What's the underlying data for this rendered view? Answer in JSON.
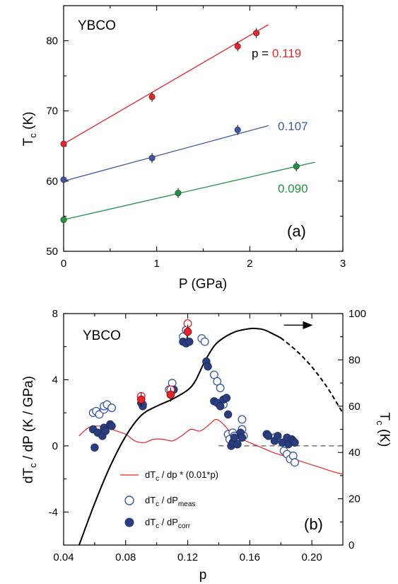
{
  "chart_data": [
    {
      "type": "scatter",
      "panel_label": "(a)",
      "sample": "YBCO",
      "xlabel": "P (GPa)",
      "ylabel_main": "T",
      "ylabel_sub": "c",
      "ylabel_unit": " (K)",
      "xlim": [
        0,
        3
      ],
      "ylim": [
        50,
        85
      ],
      "xticks": [
        "0",
        "1",
        "2",
        "3"
      ],
      "yticks": [
        "50",
        "60",
        "70",
        "80"
      ],
      "series": [
        {
          "label": "0.119",
          "label_prefix": "p = ",
          "color": "#e8242b",
          "x": [
            0,
            0.95,
            1.87,
            2.07
          ],
          "y": [
            65.3,
            72.0,
            79.2,
            81.1
          ],
          "fit": {
            "x0": 0,
            "y0": 65.3,
            "x1": 2.2,
            "y1": 82.3
          }
        },
        {
          "label": "0.107",
          "color": "#3a57a7",
          "x": [
            0,
            0.95,
            1.87
          ],
          "y": [
            60.2,
            63.3,
            67.3
          ],
          "fit": {
            "x0": 0,
            "y0": 60.0,
            "x1": 2.2,
            "y1": 67.9
          }
        },
        {
          "label": "0.090",
          "color": "#1e9344",
          "x": [
            0,
            1.23,
            2.5
          ],
          "y": [
            54.5,
            58.3,
            62.1
          ],
          "fit": {
            "x0": 0,
            "y0": 54.5,
            "x1": 2.7,
            "y1": 62.7
          }
        }
      ]
    },
    {
      "type": "scatter",
      "panel_label": "(b)",
      "sample": "YBCO",
      "xlabel": "p",
      "ylabel_left_main": "dT",
      "ylabel_left_sub": "c",
      "ylabel_left_unit": " / dP (K / GPa)",
      "ylabel_right_main": "T",
      "ylabel_right_sub": "c",
      "ylabel_right_unit": " (K)",
      "xlim": [
        0.04,
        0.22
      ],
      "ylim_left": [
        -6,
        8
      ],
      "ylim_right": [
        0,
        100
      ],
      "xticks": [
        "0.04",
        "0.08",
        "0.12",
        "0.16",
        "0.20"
      ],
      "yticks_left": [
        "-4",
        "0",
        "4",
        "8"
      ],
      "yticks_right": [
        "0",
        "20",
        "40",
        "60",
        "80",
        "100"
      ],
      "legend": [
        {
          "main": "dT",
          "sub": "c",
          "rest": " / dp * (0.01*p)",
          "color": "#e8242b"
        },
        {
          "main": "dT",
          "sub": "c",
          "rest": " / dP",
          "sub2": "meas",
          "color": "#3a57a7"
        },
        {
          "main": "dT",
          "sub": "c",
          "rest": " / dP",
          "sub2": "corr",
          "color": "#2a3d7e"
        }
      ],
      "tc_curve": {
        "p": [
          0.05,
          0.06,
          0.07,
          0.08,
          0.09,
          0.1,
          0.11,
          0.12,
          0.125,
          0.13,
          0.135,
          0.14,
          0.15,
          0.16,
          0.165,
          0.17,
          0.18
        ],
        "tc": [
          0,
          18,
          34,
          47,
          56,
          60,
          63,
          67,
          71,
          78,
          84,
          88,
          92,
          93.5,
          93.5,
          92.8,
          89.5
        ]
      },
      "tc_curve_dashed": {
        "p": [
          0.18,
          0.19,
          0.2,
          0.21,
          0.22
        ],
        "tc": [
          89.5,
          84,
          77,
          68,
          57
        ]
      },
      "red_curve": {
        "p": [
          0.05,
          0.056,
          0.062,
          0.068,
          0.074,
          0.08,
          0.086,
          0.092,
          0.098,
          0.104,
          0.11,
          0.116,
          0.122,
          0.128,
          0.134,
          0.138,
          0.142,
          0.148,
          0.155,
          0.165,
          0.175,
          0.185,
          0.195,
          0.205,
          0.215,
          0.22
        ],
        "y": [
          0.6,
          1.1,
          1.2,
          1.1,
          0.9,
          0.7,
          0.3,
          0.2,
          0.4,
          0.4,
          0.3,
          0.6,
          1.0,
          0.9,
          1.3,
          1.6,
          1.4,
          0.8,
          0.4,
          0.0,
          -0.4,
          -0.7,
          -1.0,
          -1.3,
          -1.6,
          -1.7
        ]
      },
      "dashed_line": {
        "x0": 0.14,
        "x1": 0.22,
        "y": 0
      },
      "arrow_p": [
        0.182,
        0.2
      ],
      "arrow_tc": 95,
      "open_points": {
        "p": [
          0.059,
          0.061,
          0.063,
          0.066,
          0.066,
          0.068,
          0.071,
          0.09,
          0.091,
          0.108,
          0.11,
          0.117,
          0.119,
          0.129,
          0.131,
          0.137,
          0.139,
          0.141,
          0.143,
          0.146,
          0.147,
          0.149,
          0.15,
          0.152,
          0.155,
          0.155,
          0.156,
          0.171,
          0.176,
          0.182,
          0.184,
          0.186,
          0.188,
          0.189
        ],
        "y": [
          2.0,
          2.1,
          1.9,
          2.2,
          2.4,
          2.5,
          2.3,
          3.0,
          2.5,
          3.4,
          3.8,
          6.6,
          7.0,
          6.5,
          6.3,
          4.3,
          3.9,
          3.5,
          2.5,
          0.7,
          0.4,
          0.8,
          0.6,
          0.1,
          1.6,
          1.0,
          0.6,
          0.7,
          0.5,
          -0.3,
          -0.5,
          -0.8,
          -0.6,
          -1.0
        ]
      },
      "filled_points": {
        "p": [
          0.059,
          0.06,
          0.062,
          0.065,
          0.066,
          0.067,
          0.07,
          0.071,
          0.09,
          0.091,
          0.109,
          0.111,
          0.117,
          0.119,
          0.121,
          0.132,
          0.133,
          0.137,
          0.139,
          0.141,
          0.143,
          0.145,
          0.146,
          0.148,
          0.149,
          0.15,
          0.152,
          0.154,
          0.155,
          0.171,
          0.172,
          0.176,
          0.178,
          0.181,
          0.184,
          0.185,
          0.187,
          0.188,
          0.189
        ],
        "y": [
          1.0,
          -0.1,
          0.8,
          0.6,
          1.1,
          0.9,
          1.3,
          1.2,
          2.6,
          2.4,
          3.1,
          3.4,
          6.3,
          6.2,
          6.3,
          5.1,
          4.8,
          2.7,
          2.6,
          2.4,
          2.8,
          2.9,
          1.9,
          0.0,
          0.2,
          0.5,
          0.1,
          0.8,
          0.5,
          0.7,
          0.6,
          0.3,
          0.6,
          0.2,
          0.5,
          0.1,
          0.4,
          0.3,
          0.2
        ]
      },
      "red_points": {
        "p": [
          0.09,
          0.109,
          0.12
        ],
        "y": [
          2.8,
          3.1,
          6.9
        ]
      },
      "red_open_points": {
        "p": [
          0.09,
          0.109,
          0.12
        ],
        "y": [
          3.0,
          3.4,
          7.4
        ]
      }
    }
  ]
}
